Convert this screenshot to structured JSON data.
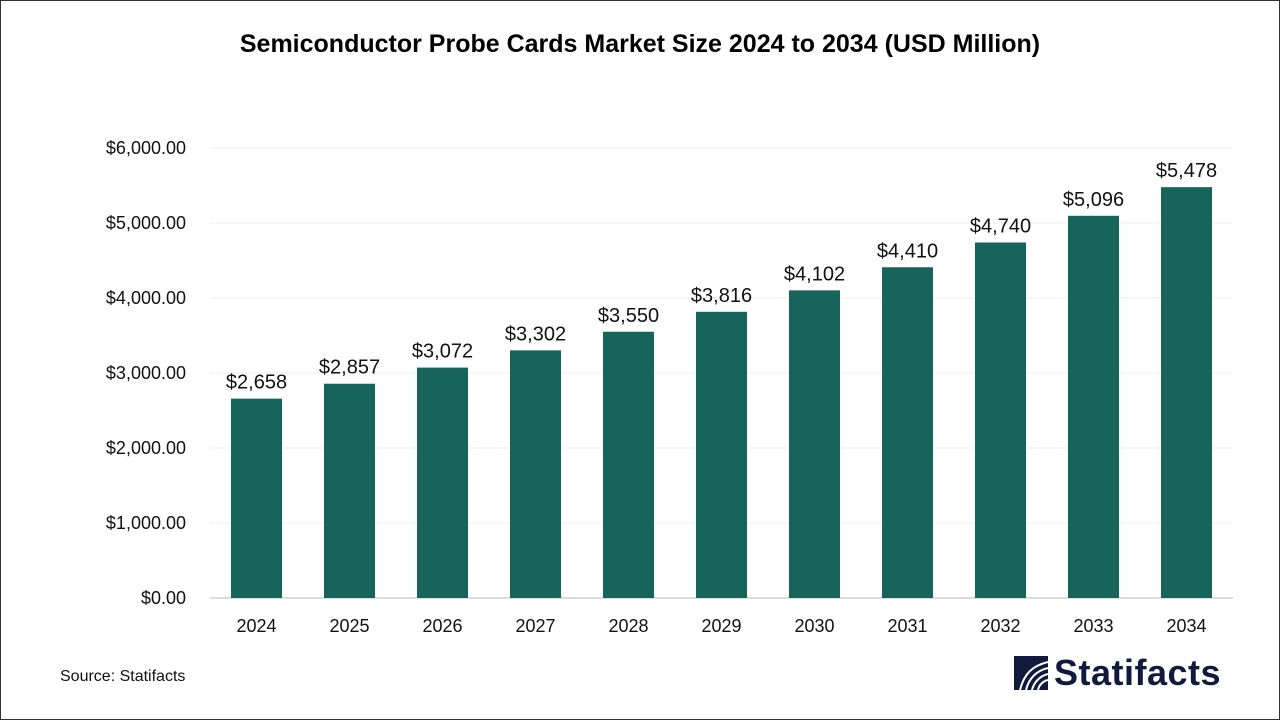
{
  "chart_data": {
    "type": "bar",
    "title": "Semiconductor Probe Cards Market Size 2024 to 2034 (USD Million)",
    "categories": [
      "2024",
      "2025",
      "2026",
      "2027",
      "2028",
      "2029",
      "2030",
      "2031",
      "2032",
      "2033",
      "2034"
    ],
    "values": [
      2658,
      2857,
      3072,
      3302,
      3550,
      3816,
      4102,
      4410,
      4740,
      5096,
      5478
    ],
    "data_labels": [
      "$2,658",
      "$2,857",
      "$3,072",
      "$3,302",
      "$3,550",
      "$3,816",
      "$4,102",
      "$4,410",
      "$4,740",
      "$5,096",
      "$5,478"
    ],
    "yticks": [
      0,
      1000,
      2000,
      3000,
      4000,
      5000,
      6000
    ],
    "ytick_labels": [
      "$0.00",
      "$1,000.00",
      "$2,000.00",
      "$3,000.00",
      "$4,000.00",
      "$5,000.00",
      "$6,000.00"
    ],
    "ylim": [
      0,
      6000
    ],
    "xlabel": "",
    "ylabel": "",
    "grid": true,
    "bar_color": "#17645a"
  },
  "source": "Source: Statifacts",
  "logo": {
    "text": "Statifacts",
    "color": "#0f1a3c"
  }
}
